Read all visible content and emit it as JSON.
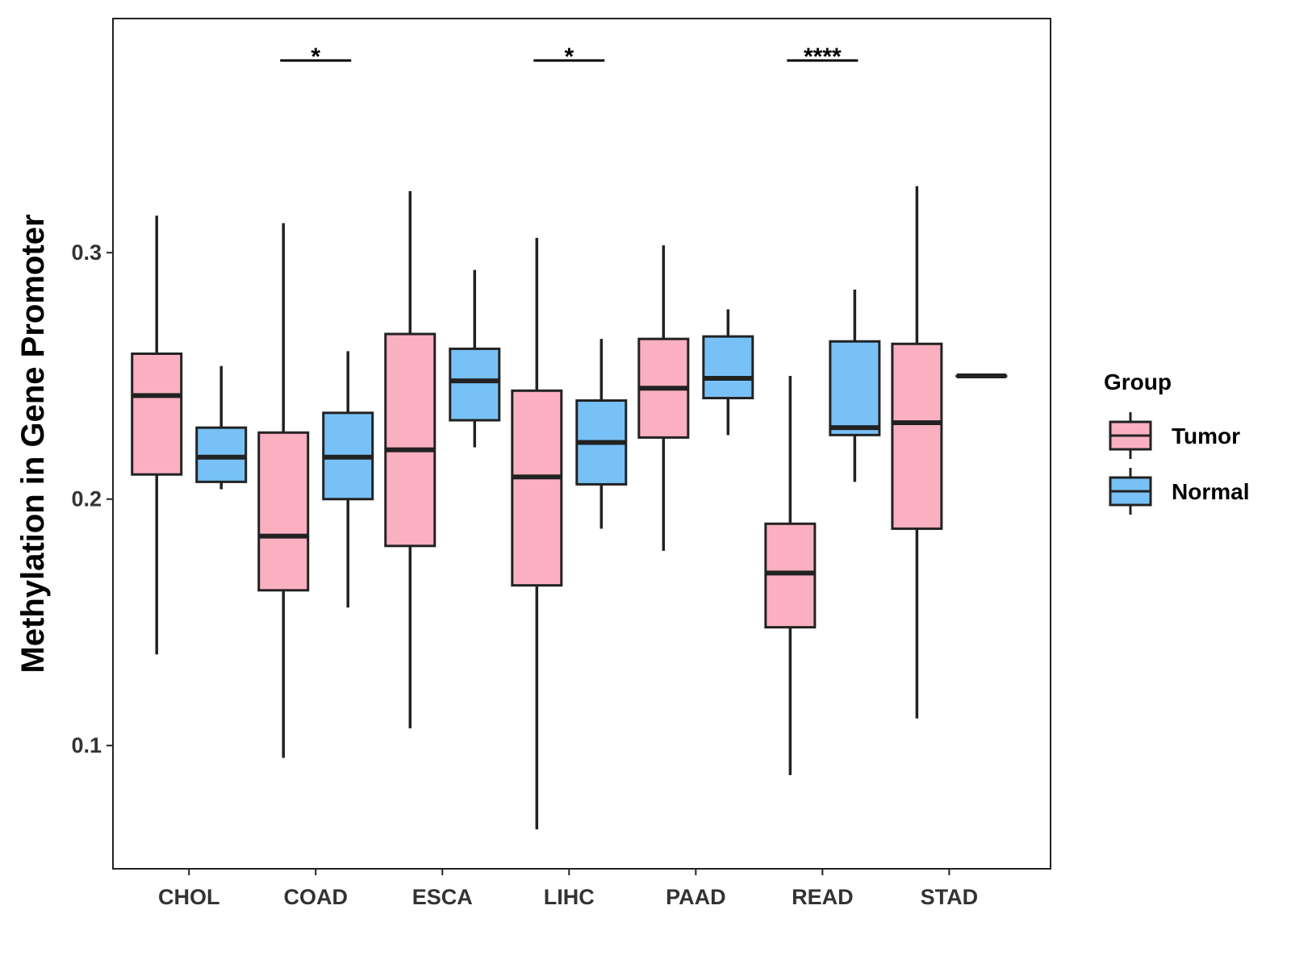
{
  "chart_data": {
    "type": "boxplot",
    "title": "",
    "xlabel": "",
    "ylabel": "Methylation in Gene Promoter",
    "ylim": [
      0.05,
      0.395
    ],
    "yticks": [
      {
        "value": 0.1,
        "label": "0.1"
      },
      {
        "value": 0.2,
        "label": "0.2"
      },
      {
        "value": 0.3,
        "label": "0.3"
      }
    ],
    "categories": [
      "CHOL",
      "COAD",
      "ESCA",
      "LIHC",
      "PAAD",
      "READ",
      "STAD"
    ],
    "legend": {
      "title": "Group",
      "position": "right",
      "entries": [
        {
          "name": "Tumor",
          "color": "#FBB0C1"
        },
        {
          "name": "Normal",
          "color": "#78C1F6"
        }
      ]
    },
    "series": [
      {
        "name": "Tumor",
        "color": "#FBB0C1",
        "boxes": [
          {
            "category": "CHOL",
            "min": 0.137,
            "q1": 0.21,
            "median": 0.242,
            "q3": 0.259,
            "max": 0.315
          },
          {
            "category": "COAD",
            "min": 0.095,
            "q1": 0.163,
            "median": 0.185,
            "q3": 0.227,
            "max": 0.312
          },
          {
            "category": "ESCA",
            "min": 0.107,
            "q1": 0.181,
            "median": 0.22,
            "q3": 0.267,
            "max": 0.325
          },
          {
            "category": "LIHC",
            "min": 0.066,
            "q1": 0.165,
            "median": 0.209,
            "q3": 0.244,
            "max": 0.306
          },
          {
            "category": "PAAD",
            "min": 0.179,
            "q1": 0.225,
            "median": 0.245,
            "q3": 0.265,
            "max": 0.303
          },
          {
            "category": "READ",
            "min": 0.088,
            "q1": 0.148,
            "median": 0.17,
            "q3": 0.19,
            "max": 0.25
          },
          {
            "category": "STAD",
            "min": 0.111,
            "q1": 0.188,
            "median": 0.231,
            "q3": 0.263,
            "max": 0.327
          }
        ]
      },
      {
        "name": "Normal",
        "color": "#78C1F6",
        "boxes": [
          {
            "category": "CHOL",
            "min": 0.204,
            "q1": 0.207,
            "median": 0.217,
            "q3": 0.229,
            "max": 0.254
          },
          {
            "category": "COAD",
            "min": 0.156,
            "q1": 0.2,
            "median": 0.217,
            "q3": 0.235,
            "max": 0.26
          },
          {
            "category": "ESCA",
            "min": 0.221,
            "q1": 0.232,
            "median": 0.248,
            "q3": 0.261,
            "max": 0.293
          },
          {
            "category": "LIHC",
            "min": 0.188,
            "q1": 0.206,
            "median": 0.223,
            "q3": 0.24,
            "max": 0.265
          },
          {
            "category": "PAAD",
            "min": 0.226,
            "q1": 0.241,
            "median": 0.249,
            "q3": 0.266,
            "max": 0.277
          },
          {
            "category": "READ",
            "min": 0.207,
            "q1": 0.226,
            "median": 0.229,
            "q3": 0.264,
            "max": 0.285
          },
          {
            "category": "STAD",
            "min": 0.25,
            "q1": 0.25,
            "median": 0.25,
            "q3": 0.25,
            "max": 0.25
          }
        ]
      }
    ],
    "annotations": [
      {
        "category": "COAD",
        "text": "*"
      },
      {
        "category": "LIHC",
        "text": "*"
      },
      {
        "category": "READ",
        "text": "****"
      }
    ]
  }
}
